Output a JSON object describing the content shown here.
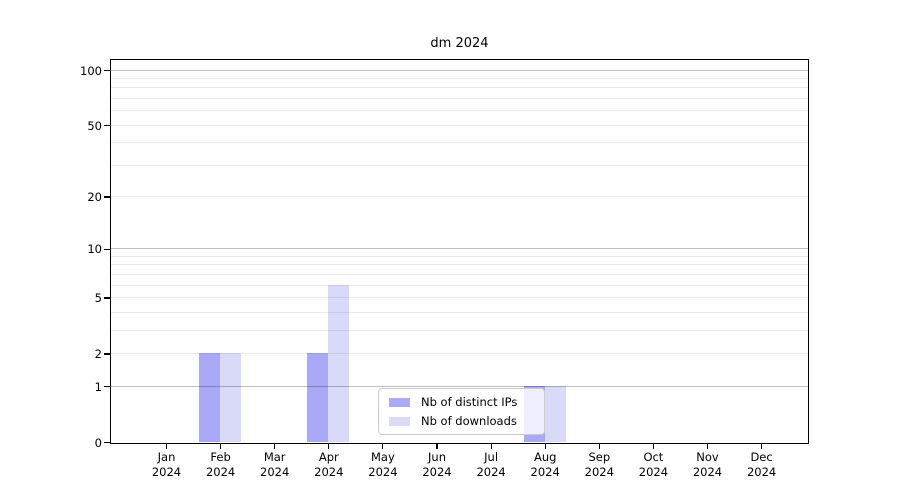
{
  "chart_data": {
    "type": "bar",
    "title": "dm 2024",
    "categories": [
      "Jan",
      "Feb",
      "Mar",
      "Apr",
      "May",
      "Jun",
      "Jul",
      "Aug",
      "Sep",
      "Oct",
      "Nov",
      "Dec"
    ],
    "category_year": "2024",
    "series": [
      {
        "name": "Nb of distinct IPs",
        "color": "#a9a9f8",
        "values": [
          0,
          2,
          0,
          2,
          0,
          0,
          0,
          1,
          0,
          0,
          0,
          0
        ]
      },
      {
        "name": "Nb of downloads",
        "color": "#d9d9f8",
        "values": [
          0,
          2,
          0,
          6,
          0,
          0,
          0,
          1,
          0,
          0,
          0,
          0
        ]
      }
    ],
    "y_axis": {
      "scale": "log10(1+v)",
      "tick_labels": [
        0,
        1,
        2,
        5,
        10,
        20,
        50,
        100
      ],
      "major_gridlines": [
        1,
        10,
        100
      ],
      "minor_gridlines": [
        2,
        3,
        4,
        5,
        6,
        7,
        8,
        9,
        20,
        30,
        40,
        50,
        60,
        70,
        80,
        90
      ],
      "ylim": [
        0,
        100
      ]
    },
    "xlabel": "",
    "ylabel": "",
    "grid": true,
    "legend_position": "lower center"
  }
}
